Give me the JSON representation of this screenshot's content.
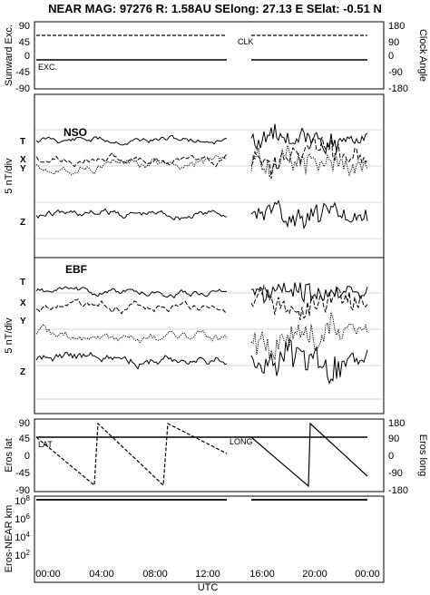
{
  "header": "NEAR MAG: 97276  R: 1.58AU  SElong:   27.13 E  SElat:   -0.51 N",
  "chart_data": [
    {
      "type": "line",
      "name": "panel-sunward-clock",
      "ylabel_left": "Sunward Exc.",
      "ylabel_right": "Clock Angle",
      "yticks_left": [
        "90",
        "45",
        "0",
        "-45",
        "-90"
      ],
      "yticks_right": [
        "180",
        "90",
        "0",
        "-90",
        "-180"
      ],
      "ylim_left": [
        -90,
        90
      ],
      "ylim_right": [
        -180,
        180
      ],
      "annotations": [
        "CLK",
        "EXC."
      ],
      "x_gap_hours": [
        13.3,
        14.8
      ],
      "series": [
        {
          "label": "CLK",
          "style": "dashed",
          "axis": "right",
          "points": [
            [
              0,
              150
            ],
            [
              13.3,
              150
            ],
            [
              14.8,
              150
            ],
            [
              24,
              150
            ]
          ]
        },
        {
          "label": "EXC.",
          "style": "solid",
          "axis": "left",
          "points": [
            [
              0,
              -10
            ],
            [
              13.3,
              -10
            ],
            [
              14.8,
              -10
            ],
            [
              24,
              -10
            ]
          ]
        }
      ]
    },
    {
      "type": "line",
      "name": "panel-nso",
      "panel_title": "NSO",
      "ylabel": "5 nT/div",
      "trace_labels": [
        "T",
        "X",
        "Y",
        "Z"
      ],
      "note": "Four offset traces (T, X, Y, Z), data gap ~13:30-14:50"
    },
    {
      "type": "line",
      "name": "panel-ebf",
      "panel_title": "EBF",
      "ylabel": "5 nT/div",
      "trace_labels": [
        "T",
        "X",
        "Y",
        "Z"
      ],
      "note": "Four offset traces (T, X, Y, Z), data gap ~13:30-14:50"
    },
    {
      "type": "line",
      "name": "panel-eros",
      "ylabel_left": "Eros lat",
      "ylabel_right": "Eros long",
      "yticks_left": [
        "90",
        "45",
        "0",
        "-45",
        "-90"
      ],
      "yticks_right": [
        "180",
        "90",
        "0",
        "-90",
        "-180"
      ],
      "ylim_left": [
        -90,
        90
      ],
      "ylim_right": [
        -180,
        180
      ],
      "annotations": [
        "LAT",
        "LONG"
      ],
      "series": [
        {
          "label": "LAT",
          "style": "solid",
          "axis": "left",
          "points": [
            [
              0,
              45
            ],
            [
              24,
              45
            ]
          ]
        },
        {
          "label": "LONG",
          "style": "dashed",
          "axis": "right",
          "points": [
            [
              0,
              80
            ],
            [
              3,
              -160
            ],
            [
              3.8,
              170
            ],
            [
              8.3,
              -160
            ],
            [
              9,
              170
            ],
            [
              13.3,
              60
            ]
          ]
        },
        {
          "label": "LONG-seg2",
          "style": "solid",
          "axis": "right",
          "points": [
            [
              14.8,
              120
            ],
            [
              18.8,
              -165
            ],
            [
              19.5,
              170
            ],
            [
              24,
              -90
            ]
          ]
        }
      ]
    },
    {
      "type": "line",
      "name": "panel-distance",
      "ylabel": "Eros-NEAR km",
      "yticks": [
        "10^8",
        "10^6",
        "10^4",
        "10^2"
      ],
      "yscale": "log",
      "series": [
        {
          "label": "distance",
          "style": "solid",
          "points": [
            [
              0,
              120000000.0
            ],
            [
              13.3,
              120000000.0
            ],
            [
              14.8,
              120000000.0
            ],
            [
              24,
              120000000.0
            ]
          ]
        }
      ]
    }
  ],
  "xaxis": {
    "label": "UTC",
    "ticks": [
      "00:00",
      "04:00",
      "08:00",
      "12:00",
      "16:00",
      "20:00",
      "00:00"
    ],
    "range_hours": [
      0,
      24
    ]
  }
}
